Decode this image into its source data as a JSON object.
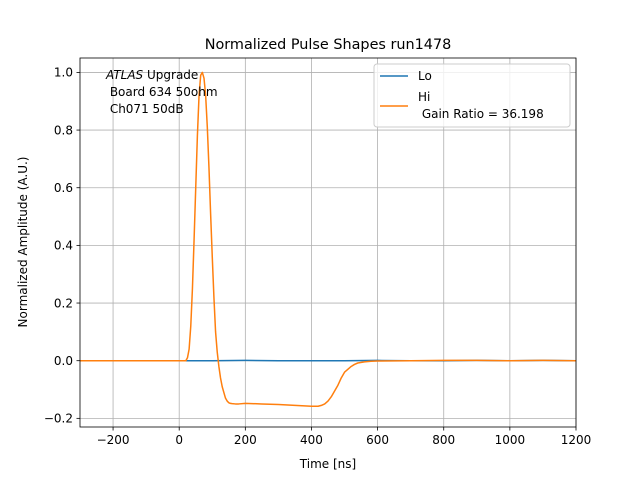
{
  "chart_data": {
    "type": "line",
    "title": "Normalized Pulse Shapes run1478",
    "xlabel": "Time [ns]",
    "ylabel": "Normalized Amplitude (A.U.)",
    "xlim": [
      -300,
      1200
    ],
    "ylim": [
      -0.23,
      1.05
    ],
    "xticks": [
      -200,
      0,
      200,
      400,
      600,
      800,
      1000,
      1200
    ],
    "xtick_labels": [
      "−200",
      "0",
      "200",
      "400",
      "600",
      "800",
      "1000",
      "1200"
    ],
    "yticks": [
      -0.2,
      0.0,
      0.2,
      0.4,
      0.6,
      0.8,
      1.0
    ],
    "ytick_labels": [
      "−0.2",
      "0.0",
      "0.2",
      "0.4",
      "0.6",
      "0.8",
      "1.0"
    ],
    "grid": true,
    "legend_position": "top-right",
    "annotation": {
      "italic": "ATLAS",
      "rest": " Upgrade",
      "line2": " Board 634 50ohm",
      "line3": " Ch071 50dB"
    },
    "series": [
      {
        "name": "Lo",
        "color": "#1f77b4",
        "x": [
          -300,
          30,
          100,
          200,
          300,
          400,
          500,
          600,
          700,
          800,
          900,
          1000,
          1100,
          1200
        ],
        "y": [
          0.0,
          0.0,
          0.0,
          0.001,
          0.0,
          0.0,
          0.0,
          0.001,
          0.0,
          0.0,
          0.001,
          0.0,
          0.001,
          0.0
        ]
      },
      {
        "name": "Hi",
        "label_line2": " Gain Ratio = 36.198",
        "color": "#ff7f0e",
        "x": [
          -300,
          0,
          20,
          25,
          30,
          35,
          40,
          45,
          50,
          55,
          60,
          65,
          70,
          75,
          80,
          85,
          90,
          95,
          100,
          105,
          110,
          115,
          120,
          125,
          130,
          135,
          140,
          145,
          150,
          155,
          160,
          170,
          180,
          200,
          250,
          300,
          350,
          400,
          420,
          430,
          440,
          450,
          460,
          470,
          480,
          490,
          500,
          510,
          520,
          530,
          540,
          560,
          580,
          600,
          700,
          800,
          900,
          1000,
          1100,
          1200
        ],
        "y": [
          0.0,
          0.0,
          0.0,
          0.01,
          0.04,
          0.12,
          0.25,
          0.42,
          0.6,
          0.78,
          0.92,
          0.99,
          1.0,
          0.98,
          0.92,
          0.81,
          0.67,
          0.51,
          0.36,
          0.22,
          0.1,
          0.03,
          -0.02,
          -0.06,
          -0.09,
          -0.11,
          -0.13,
          -0.14,
          -0.146,
          -0.148,
          -0.149,
          -0.15,
          -0.15,
          -0.148,
          -0.15,
          -0.152,
          -0.155,
          -0.158,
          -0.158,
          -0.155,
          -0.15,
          -0.14,
          -0.125,
          -0.105,
          -0.085,
          -0.06,
          -0.04,
          -0.03,
          -0.02,
          -0.013,
          -0.008,
          -0.004,
          -0.002,
          -0.001,
          0.0,
          0.001,
          0.001,
          0.0,
          0.001,
          0.0
        ]
      }
    ]
  }
}
